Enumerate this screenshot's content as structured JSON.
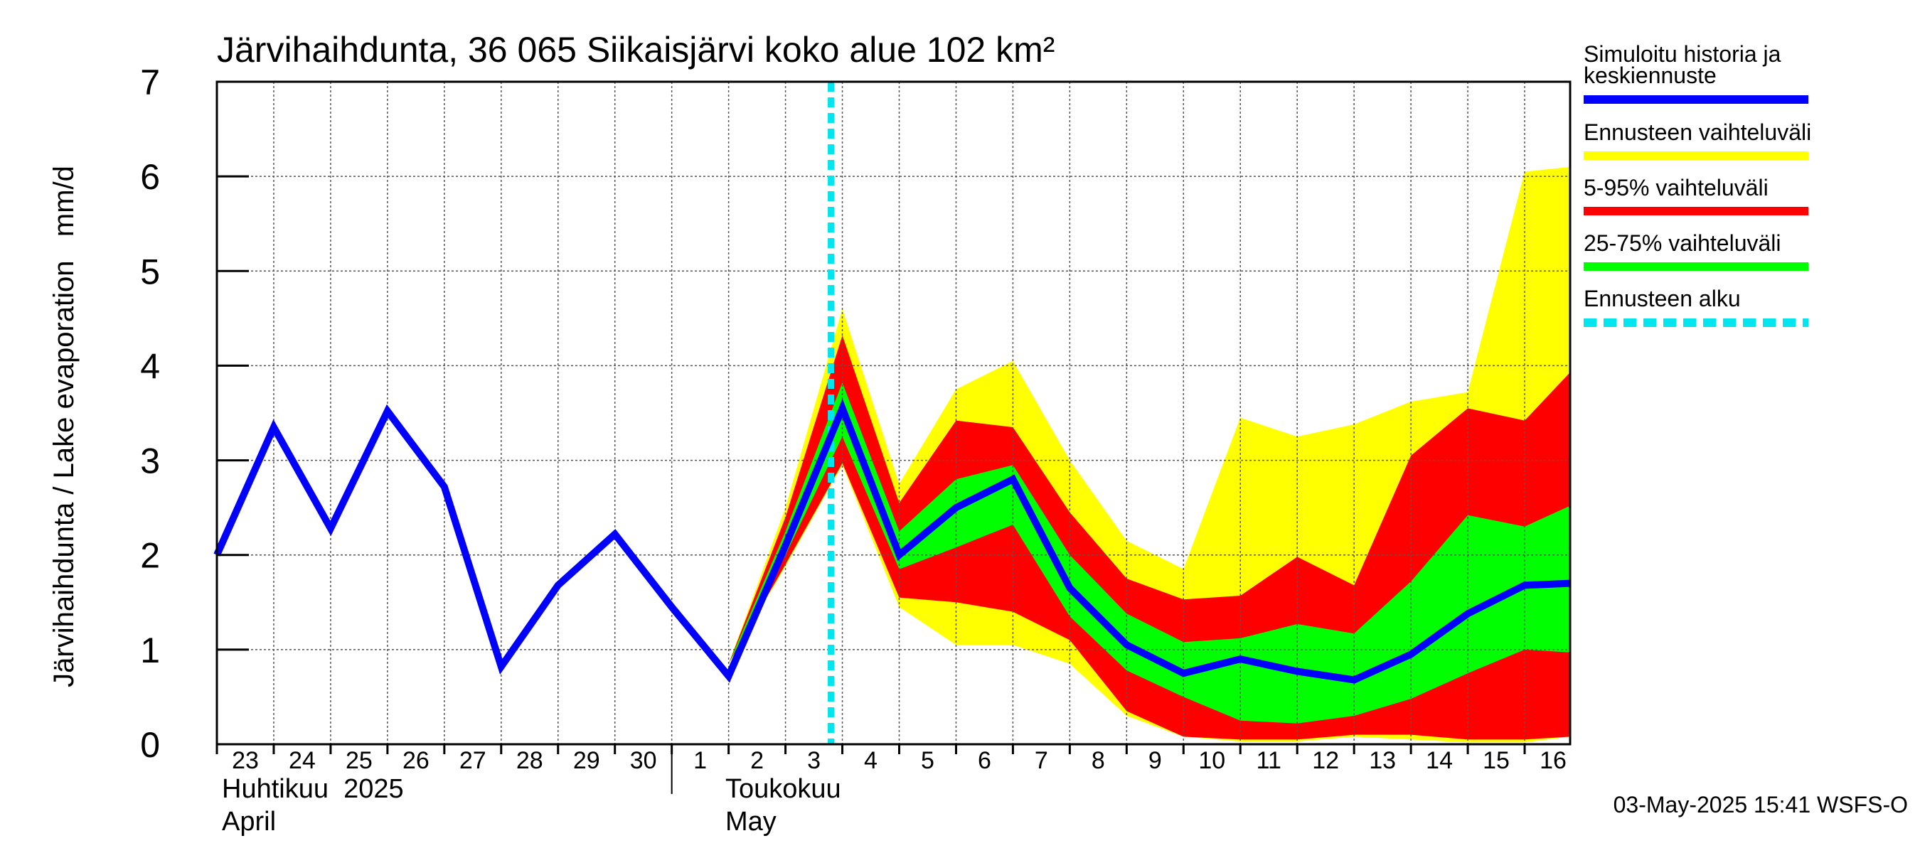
{
  "chart_data": {
    "type": "area",
    "title": "Järvihaihdunta, 36 065 Siikaisjärvi koko alue 102 km²",
    "ylabel": "Järvihaihdunta / Lake evaporation   mm/d",
    "ylim": [
      0,
      7
    ],
    "yticks": [
      "0",
      "1",
      "2",
      "3",
      "4",
      "5",
      "6",
      "7"
    ],
    "x_day_labels": [
      "23",
      "24",
      "25",
      "26",
      "27",
      "28",
      "29",
      "30",
      "1",
      "2",
      "3",
      "4",
      "5",
      "6",
      "7",
      "8",
      "9",
      "10",
      "11",
      "12",
      "13",
      "14",
      "15",
      "16"
    ],
    "month_labels": [
      {
        "fi": "Huhtikuu  2025",
        "en": "April"
      },
      {
        "fi": "Toukokuu",
        "en": "May"
      }
    ],
    "forecast_start_day": 10.8,
    "series": [
      {
        "name": "Simuloitu historia ja keskiennuste",
        "color": "#0000ff",
        "x": [
          0,
          1,
          2,
          3,
          4,
          5,
          6,
          7,
          8,
          9,
          10,
          11,
          12,
          13,
          14,
          15,
          16,
          17,
          18,
          19,
          20,
          21,
          22,
          23,
          23.8
        ],
        "values": [
          2.0,
          3.35,
          2.28,
          3.52,
          2.72,
          0.82,
          1.68,
          2.22,
          1.45,
          0.72,
          2.1,
          3.55,
          2.0,
          2.5,
          2.8,
          1.65,
          1.05,
          0.75,
          0.9,
          0.77,
          0.68,
          0.95,
          1.38,
          1.68,
          1.7
        ]
      },
      {
        "name": "Ennusteen vaihteluväli",
        "color": "#ffff00",
        "x": [
          9,
          10,
          11,
          12,
          13,
          14,
          15,
          16,
          17,
          18,
          19,
          20,
          21,
          22,
          23,
          23.8
        ],
        "upper": [
          0.85,
          2.5,
          4.6,
          2.75,
          3.75,
          4.05,
          3.0,
          2.15,
          1.85,
          3.45,
          3.25,
          3.38,
          3.62,
          3.72,
          6.05,
          6.1
        ],
        "lower": [
          0.85,
          1.88,
          2.95,
          1.45,
          1.05,
          1.05,
          0.85,
          0.3,
          0.08,
          0.03,
          0.03,
          0.08,
          0.05,
          0.02,
          0.02,
          0.08
        ]
      },
      {
        "name": "5-95% vaihteluväli",
        "color": "#ff0000",
        "x": [
          9,
          10,
          11,
          12,
          13,
          14,
          15,
          16,
          17,
          18,
          19,
          20,
          21,
          22,
          23,
          23.8
        ],
        "upper": [
          0.85,
          2.4,
          4.32,
          2.55,
          3.42,
          3.35,
          2.45,
          1.75,
          1.53,
          1.57,
          1.98,
          1.68,
          3.05,
          3.55,
          3.42,
          3.93
        ],
        "lower": [
          0.85,
          1.9,
          2.97,
          1.55,
          1.5,
          1.4,
          1.1,
          0.35,
          0.08,
          0.05,
          0.05,
          0.1,
          0.1,
          0.05,
          0.05,
          0.08
        ]
      },
      {
        "name": "25-75% vaihteluväli",
        "color": "#00ff00",
        "x": [
          9,
          10,
          11,
          12,
          13,
          14,
          15,
          16,
          17,
          18,
          19,
          20,
          21,
          22,
          23,
          23.8
        ],
        "upper": [
          0.85,
          2.25,
          3.82,
          2.25,
          2.8,
          2.95,
          2.0,
          1.38,
          1.08,
          1.12,
          1.27,
          1.17,
          1.72,
          2.42,
          2.3,
          2.52
        ],
        "lower": [
          0.85,
          2.0,
          3.25,
          1.85,
          2.08,
          2.32,
          1.35,
          0.78,
          0.5,
          0.25,
          0.22,
          0.3,
          0.48,
          0.75,
          1.0,
          0.97
        ]
      }
    ],
    "legend": [
      {
        "label": "Simuloitu historia ja keskiennuste",
        "color": "#0000ff",
        "style": "solid"
      },
      {
        "label": "Ennusteen vaihteluväli",
        "color": "#ffff00",
        "style": "solid"
      },
      {
        "label": "5-95% vaihteluväli",
        "color": "#ff0000",
        "style": "solid"
      },
      {
        "label": "25-75% vaihteluväli",
        "color": "#00ff00",
        "style": "solid"
      },
      {
        "label": "Ennusteen alku",
        "color": "#00e5ee",
        "style": "dashed"
      }
    ],
    "legend_lines": [
      "Simuloitu historia ja",
      "keskiennuste"
    ],
    "footer": "03-May-2025 15:41 WSFS-O"
  }
}
